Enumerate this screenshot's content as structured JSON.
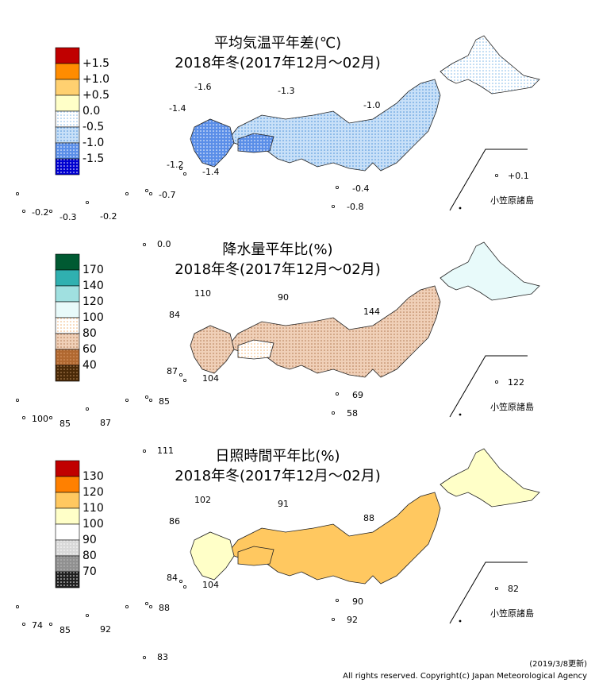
{
  "panels": [
    {
      "title": "平均気温平年差(℃)",
      "subtitle": "2018年冬(2017年12月～02月)",
      "legend_labels": [
        "+1.5",
        "+1.0",
        "+0.5",
        "0.0",
        "-0.5",
        "-1.0",
        "-1.5"
      ],
      "legend_swatches": [
        {
          "color": "#c00000",
          "dot": "#c00000"
        },
        {
          "color": "#ff8c00",
          "dot": "#ff8c00"
        },
        {
          "color": "#ffd070",
          "dot": "#ffd070"
        },
        {
          "color": "#ffffc8",
          "dot": "#ffffc8"
        },
        {
          "color": "#ffffff",
          "dot": "#7fb8e8"
        },
        {
          "color": "#c8e0f8",
          "dot": "#4a90d8"
        },
        {
          "color": "#5a8ee8",
          "dot": "#ffffff"
        },
        {
          "color": "#0000d0",
          "dot": "#ffffff"
        }
      ],
      "annotations": [
        "-1.6",
        "-1.3",
        "-1.4",
        "-1.0",
        "-1.2",
        "-1.4",
        "-0.4",
        "-0.8",
        "+0.1",
        "-0.7",
        "-0.2",
        "-0.3",
        "-0.2",
        "0.0"
      ],
      "inset_label": "小笠原諸島"
    },
    {
      "title": "降水量平年比(%)",
      "subtitle": "2018年冬(2017年12月～02月)",
      "legend_labels": [
        "170",
        "140",
        "120",
        "100",
        "80",
        "60",
        "40"
      ],
      "legend_swatches": [
        {
          "color": "#005a32",
          "dot": "#005a32"
        },
        {
          "color": "#30b0b0",
          "dot": "#30b0b0"
        },
        {
          "color": "#a0e0e0",
          "dot": "#a0e0e0"
        },
        {
          "color": "#e8fafa",
          "dot": "#e8fafa"
        },
        {
          "color": "#ffffff",
          "dot": "#f0b070"
        },
        {
          "color": "#f0d0b8",
          "dot": "#b07850"
        },
        {
          "color": "#b06830",
          "dot": "#e0a070"
        },
        {
          "color": "#4a2a08",
          "dot": "#c09060"
        }
      ],
      "annotations": [
        "110",
        "90",
        "84",
        "144",
        "87",
        "104",
        "69",
        "58",
        "122",
        "85",
        "100",
        "85",
        "87",
        "111"
      ],
      "inset_label": "小笠原諸島"
    },
    {
      "title": "日照時間平年比(%)",
      "subtitle": "2018年冬(2017年12月～02月)",
      "legend_labels": [
        "130",
        "120",
        "110",
        "100",
        "90",
        "80",
        "70"
      ],
      "legend_swatches": [
        {
          "color": "#c00000",
          "dot": "#c00000"
        },
        {
          "color": "#ff8000",
          "dot": "#ff8000"
        },
        {
          "color": "#ffc860",
          "dot": "#ffc860"
        },
        {
          "color": "#ffffc8",
          "dot": "#ffffc8"
        },
        {
          "color": "#ffffff",
          "dot": "#ffffff"
        },
        {
          "color": "#d8d8d8",
          "dot": "#ffffff"
        },
        {
          "color": "#909090",
          "dot": "#c0c0c0"
        },
        {
          "color": "#202020",
          "dot": "#ffffff"
        }
      ],
      "annotations": [
        "102",
        "91",
        "86",
        "88",
        "84",
        "104",
        "90",
        "92",
        "82",
        "88",
        "74",
        "85",
        "92",
        "83"
      ],
      "inset_label": "小笠原諸島"
    }
  ],
  "footer": {
    "updated": "(2019/3/8更新)",
    "copyright": "All rights reserved. Copyright(c) Japan Meteorological Agency"
  }
}
